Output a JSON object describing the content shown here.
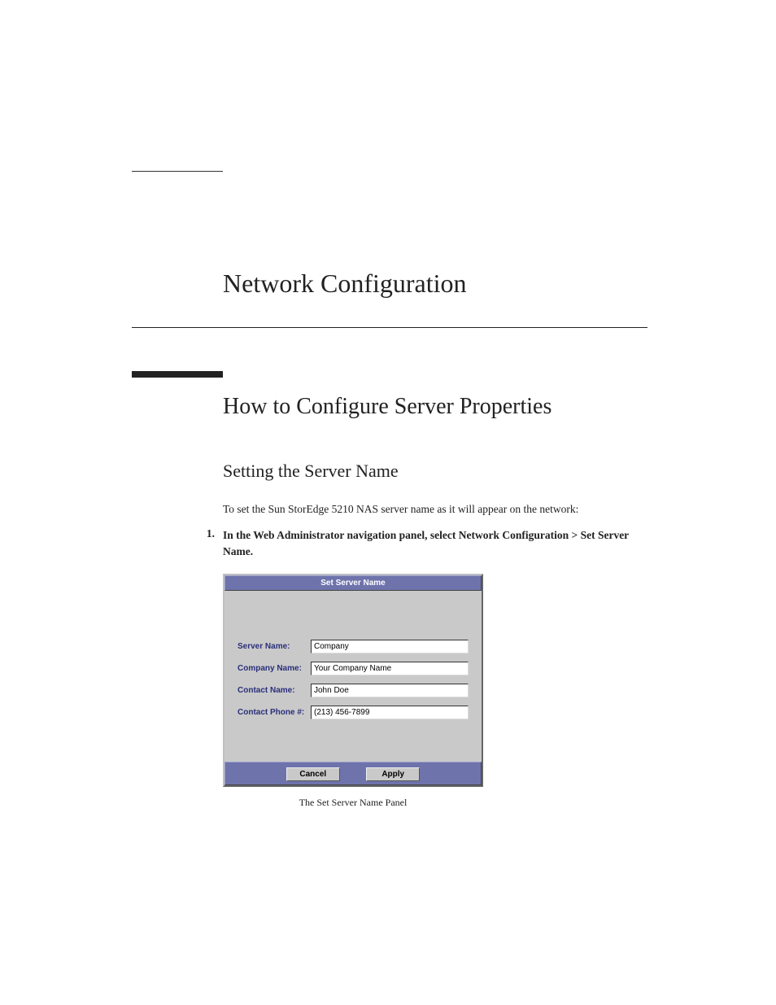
{
  "chapter": {
    "title": "Network Configuration"
  },
  "section": {
    "title": "How to Configure Server Properties"
  },
  "subsection": {
    "title": "Setting the Server Name"
  },
  "body": {
    "intro": "To set the Sun StorEdge 5210 NAS server name as it will appear on the network:"
  },
  "steps": [
    {
      "num": "1.",
      "text": "In the Web Administrator navigation panel, select Network Configuration > Set Server Name."
    }
  ],
  "panel": {
    "title": "Set Server Name",
    "titlebar_bg": "#6e73ab",
    "titlebar_fg": "#ffffff",
    "body_bg": "#c9c9c9",
    "label_color": "#2a2f7a",
    "fields": {
      "server_name": {
        "label": "Server Name:",
        "value": "Company"
      },
      "company_name": {
        "label": "Company Name:",
        "value": "Your Company Name"
      },
      "contact_name": {
        "label": "Contact Name:",
        "value": "John Doe"
      },
      "contact_phone": {
        "label": "Contact Phone #:",
        "value": "(213) 456-7899"
      }
    },
    "buttons": {
      "cancel": "Cancel",
      "apply": "Apply"
    }
  },
  "figure_caption": "The Set Server Name Panel"
}
